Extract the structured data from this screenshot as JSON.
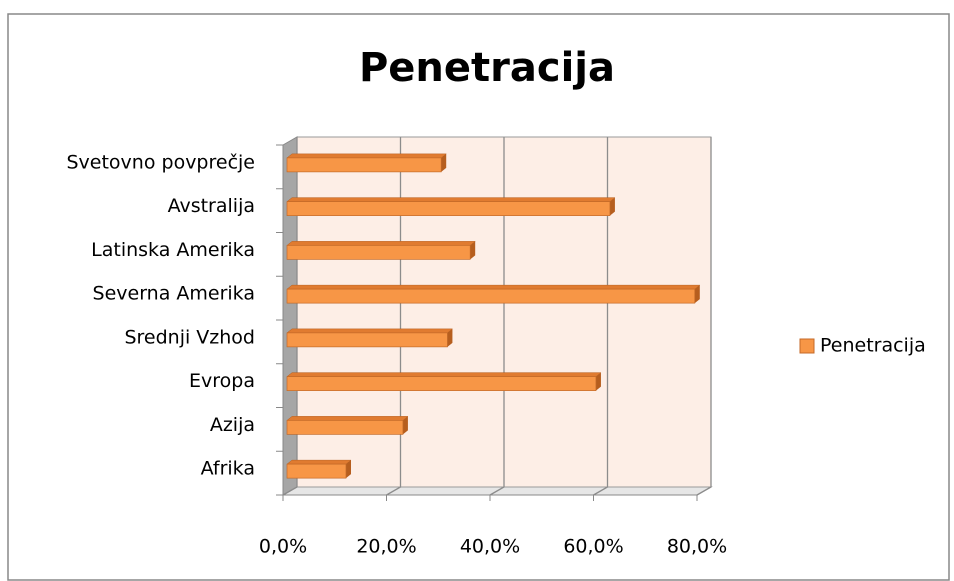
{
  "chart_data": {
    "type": "bar3d_horizontal",
    "title": "Penetracija",
    "categories": [
      "Svetovno povprečje",
      "Avstralija",
      "Latinska Amerika",
      "Severna Amerika",
      "Srednji Vzhod",
      "Evropa",
      "Azija",
      "Afrika"
    ],
    "series": [
      {
        "name": "Penetracija",
        "color": "#f79646",
        "values": [
          29.8,
          62.4,
          35.4,
          78.8,
          31.0,
          59.7,
          22.4,
          11.4
        ]
      }
    ],
    "xlim": [
      0,
      80
    ],
    "xticks": [
      {
        "value": 0,
        "label": "0,0%"
      },
      {
        "value": 20,
        "label": "20,0%"
      },
      {
        "value": 40,
        "label": "40,0%"
      },
      {
        "value": 60,
        "label": "60,0%"
      },
      {
        "value": 80,
        "label": "80,0%"
      }
    ],
    "grid": true,
    "legend": "right"
  }
}
